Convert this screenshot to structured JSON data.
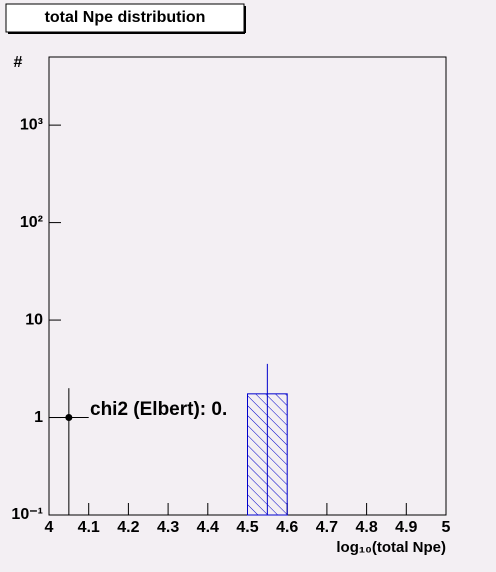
{
  "chart_data": {
    "type": "histogram",
    "title": "total Npe distribution",
    "x_label": "log₁₀(total Npe)",
    "y_label": "#",
    "bins": [
      4.5,
      4.6
    ],
    "values": [
      1.75
    ],
    "errors": [
      1.8
    ],
    "color": "#0000cc",
    "points": {
      "x": [
        4.05
      ],
      "values": [
        1
      ],
      "xerr": [
        0.05
      ],
      "yerr": [
        1
      ],
      "color": "#000000"
    },
    "annotation": "chi2 (Elbert): 0.",
    "xlim": [
      4,
      5
    ],
    "xticks": [
      4,
      4.1,
      4.2,
      4.3,
      4.4,
      4.5,
      4.6,
      4.7,
      4.8,
      4.9,
      5
    ],
    "ylim": [
      0.1,
      5000
    ],
    "log_y": true,
    "yticks": [
      {
        "value": 0.1,
        "label": "10⁻¹"
      },
      1,
      10,
      {
        "value": 100,
        "label": "10²"
      },
      {
        "value": 1000,
        "label": "10³"
      }
    ]
  }
}
